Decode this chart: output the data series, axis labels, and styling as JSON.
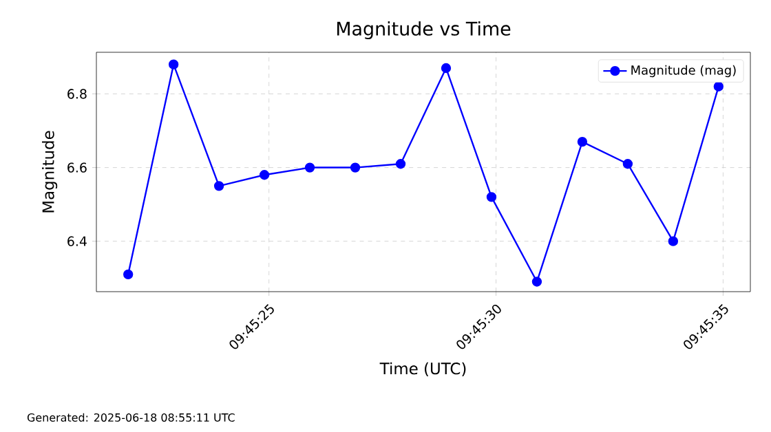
{
  "chart_data": {
    "type": "line",
    "title": "Magnitude vs Time",
    "xlabel": "Time (UTC)",
    "ylabel": "Magnitude",
    "annotations": [
      "Generated: 2025-06-18 08:55:11 UTC"
    ],
    "x": [
      9.75608333,
      9.75636111,
      9.75663889,
      9.75691667,
      9.75719444,
      9.75747222,
      9.75775,
      9.75802778,
      9.75830556,
      9.75858333,
      9.75886111,
      9.75913889,
      9.75941667,
      9.75969444
    ],
    "series": [
      {
        "name": "Magnitude (mag)",
        "color": "#0000ff",
        "values": [
          6.31,
          6.88,
          6.55,
          6.58,
          6.6,
          6.6,
          6.61,
          6.87,
          6.52,
          6.29,
          6.67,
          6.61,
          6.4,
          6.82
        ]
      }
    ],
    "xlim": [
      9.75588889,
      9.75988889
    ],
    "ylim": [
      6.263,
      6.913
    ],
    "xticks": [
      {
        "value": 9.75694444,
        "label": "09:45:25"
      },
      {
        "value": 9.75833333,
        "label": "09:45:30"
      },
      {
        "value": 9.75972222,
        "label": "09:45:35"
      }
    ],
    "yticks": [
      {
        "value": 6.4,
        "label": "6.4"
      },
      {
        "value": 6.6,
        "label": "6.6"
      },
      {
        "value": 6.8,
        "label": "6.8"
      }
    ],
    "grid": true,
    "legend": "top right",
    "marker": "circle",
    "line_style": "solid"
  }
}
